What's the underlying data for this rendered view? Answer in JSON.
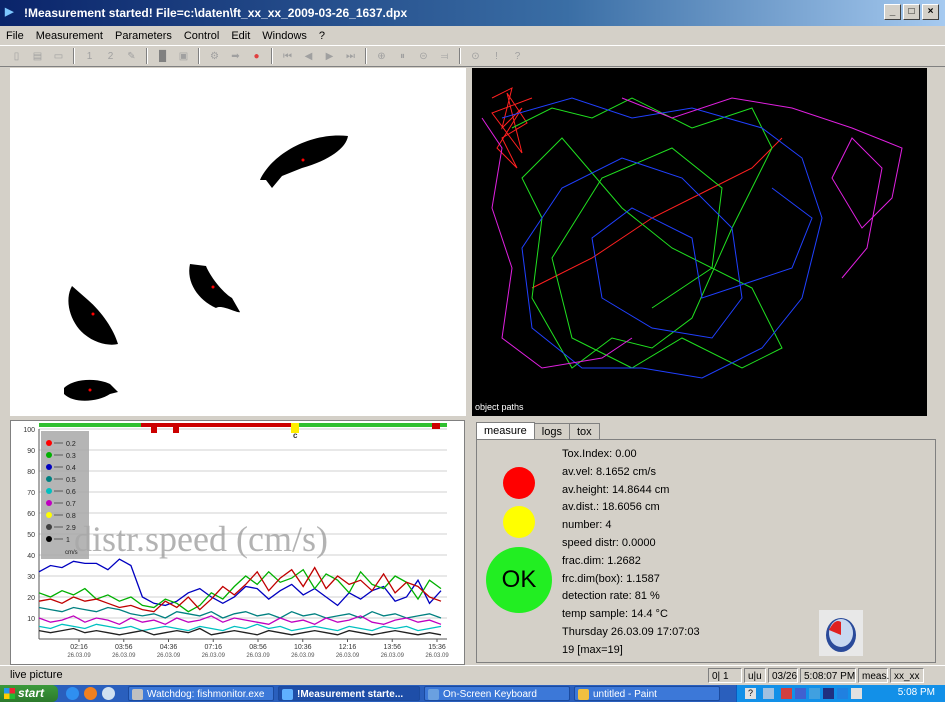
{
  "window": {
    "title": "!Measurement started! File=c:\\daten\\ft_xx_xx_2009-03-26_1637.dpx",
    "controls": [
      "_",
      "□",
      "×"
    ]
  },
  "menu": [
    "File",
    "Measurement",
    "Parameters",
    "Control",
    "Edit",
    "Windows",
    "?"
  ],
  "toolbar": {
    "buttons": [
      "new-icon",
      "open-icon",
      "monitor-icon",
      "1",
      "2",
      "edit-icon",
      "fill-icon",
      "save-icon",
      "gear-icon",
      "arrow-right-icon",
      "stop-icon",
      "first-icon",
      "prev-icon",
      "next-icon",
      "last-icon",
      "record-icon",
      "pause-icon",
      "step-icon",
      "pin-icon",
      "dot-icon",
      "info-icon",
      "help-icon"
    ],
    "labels": {
      "one": "1",
      "two": "2",
      "info": "!",
      "help": "?"
    }
  },
  "paths_panel": {
    "label": "object paths"
  },
  "chart_data": {
    "type": "line",
    "title": "distr.speed (cm/s)",
    "ylim": [
      0,
      100
    ],
    "y_ticks": [
      "100",
      "90",
      "80",
      "70",
      "60",
      "50",
      "40",
      "30",
      "20",
      "10"
    ],
    "x_ticks": [
      "02:16",
      "03:56",
      "04:36",
      "07:16",
      "08:56",
      "10:36",
      "12:16",
      "13:56",
      "15:36"
    ],
    "x_tick_dates": [
      "26.03.09",
      "26.03.09",
      "26.03.09",
      "26.03.09",
      "26.03.09",
      "26.03.09",
      "26.03.09",
      "26.03.09",
      "26.03.09"
    ],
    "legend": [
      {
        "label": "0.2",
        "color": "#ff0000"
      },
      {
        "label": "0.3",
        "color": "#00b000"
      },
      {
        "label": "0.4",
        "color": "#0000c0"
      },
      {
        "label": "0.5",
        "color": "#008080"
      },
      {
        "label": "0.6",
        "color": "#00c0c0"
      },
      {
        "label": "0.7",
        "color": "#c000c0"
      },
      {
        "label": "0.8",
        "color": "#ffff00"
      },
      {
        "label": "2.9",
        "color": "#404040"
      },
      {
        "label": "1",
        "color": "#000000"
      }
    ],
    "legend_unit": "cm/s",
    "marker_label": "c",
    "series": [
      {
        "color": "#0000c0",
        "values": [
          32,
          35,
          34,
          37,
          36,
          36,
          33,
          38,
          35,
          20,
          17,
          16,
          18,
          22,
          24,
          20,
          17,
          20,
          25,
          24,
          19,
          23,
          26,
          21,
          24,
          20,
          16,
          22,
          19,
          23,
          25,
          18,
          20,
          28,
          17,
          23
        ]
      },
      {
        "color": "#00b000",
        "values": [
          22,
          20,
          23,
          21,
          24,
          19,
          21,
          18,
          20,
          16,
          15,
          19,
          17,
          13,
          16,
          22,
          19,
          25,
          30,
          26,
          32,
          27,
          29,
          33,
          24,
          31,
          28,
          22,
          32,
          26,
          24,
          30,
          27,
          19,
          28,
          24
        ]
      },
      {
        "color": "#c00000",
        "values": [
          18,
          19,
          17,
          20,
          18,
          19,
          17,
          15,
          16,
          14,
          13,
          18,
          15,
          20,
          14,
          19,
          25,
          21,
          26,
          32,
          23,
          29,
          33,
          25,
          34,
          24,
          30,
          26,
          28,
          23,
          31,
          22,
          27,
          25,
          20,
          18
        ]
      },
      {
        "color": "#008080",
        "values": [
          15,
          14,
          13,
          15,
          14,
          13,
          15,
          14,
          12,
          11,
          12,
          10,
          13,
          12,
          11,
          13,
          10,
          12,
          13,
          11,
          12,
          10,
          13,
          11,
          12,
          10,
          11,
          12,
          10,
          13,
          11,
          12,
          10,
          11,
          12,
          10
        ]
      },
      {
        "color": "#c000c0",
        "values": [
          10,
          8,
          9,
          11,
          8,
          10,
          9,
          7,
          10,
          8,
          9,
          7,
          10,
          8,
          9,
          11,
          8,
          10,
          9,
          8,
          7,
          10,
          8,
          9,
          7,
          10,
          8,
          9,
          11,
          8,
          7,
          9,
          10,
          8,
          9,
          7
        ]
      },
      {
        "color": "#00c0c0",
        "values": [
          6,
          5,
          7,
          6,
          5,
          7,
          6,
          5,
          6,
          4,
          5,
          6,
          5,
          4,
          6,
          5,
          4,
          6,
          5,
          7,
          5,
          6,
          4,
          5,
          6,
          5,
          4,
          6,
          5,
          4,
          6,
          5,
          6,
          4,
          5,
          6
        ]
      },
      {
        "color": "#202020",
        "values": [
          4,
          3,
          4,
          5,
          3,
          4,
          3,
          2,
          3,
          4,
          2,
          3,
          4,
          3,
          5,
          2,
          3,
          4,
          3,
          2,
          4,
          3,
          2,
          3,
          4,
          3,
          2,
          4,
          3,
          2,
          3,
          4,
          3,
          2,
          3,
          2
        ]
      }
    ]
  },
  "measure_panel": {
    "tabs": [
      "measure",
      "logs",
      "tox"
    ],
    "ok_label": "OK",
    "lights": {
      "red": "#ff0000",
      "yellow": "#ffff00",
      "green": "#22ee22"
    },
    "readings": [
      "Tox.Index: 0.00",
      "av.vel: 8.1652 cm/s",
      "av.height: 14.8644 cm",
      "av.dist.: 18.6056 cm",
      "number:    4",
      "speed distr: 0.0000",
      "frac.dim: 1.2682",
      "frc.dim(box):  1.1587",
      "detection rate:  81 %",
      "temp sample:  14.4 °C",
      "Thursday 26.03.09 17:07:03",
      "19 [max=19]"
    ]
  },
  "statusbar": {
    "left": "live picture",
    "cells": [
      "0| 1",
      "u|u",
      "03/26",
      "5:08:07 PM",
      "meas.",
      "xx_xx"
    ]
  },
  "taskbar": {
    "start": "start",
    "tasks": [
      "Watchdog: fishmonitor.exe",
      "!Measurement starte...",
      "On-Screen Keyboard",
      "untitled - Paint"
    ],
    "clock": "5:08 PM",
    "help": "?"
  }
}
